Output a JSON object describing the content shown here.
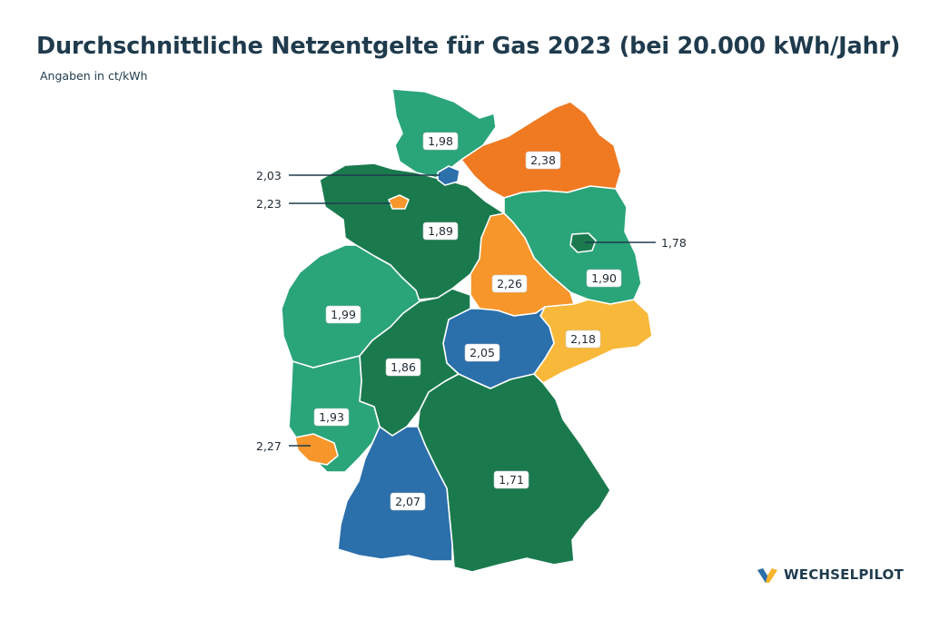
{
  "title": "Durchschnittliche Netzentgelte für Gas 2023 (bei 20.000 kWh/Jahr)",
  "subtitle": "Angaben in ct/kWh",
  "brand": "WECHSELPILOT",
  "colors": {
    "light_green": "#2aa479",
    "dark_green": "#1a7a4e",
    "blue": "#2b6fab",
    "orange": "#f07a22",
    "light_orange": "#f7962a",
    "yellow_orange": "#f8b83a"
  },
  "states": {
    "schleswig_holstein": {
      "value": "1,98",
      "color": "#2aa479"
    },
    "mecklenburg_vorpommern": {
      "value": "2,38",
      "color": "#f07a22"
    },
    "hamburg": {
      "value": "2,03",
      "color": "#2b6fab"
    },
    "bremen": {
      "value": "2,23",
      "color": "#f7962a"
    },
    "niedersachsen": {
      "value": "1,89",
      "color": "#1a7a4e"
    },
    "brandenburg": {
      "value": "1,90",
      "color": "#2aa479"
    },
    "berlin": {
      "value": "1,78",
      "color": "#1a7a4e"
    },
    "sachsen_anhalt": {
      "value": "2,26",
      "color": "#f7962a"
    },
    "nordrhein_westfalen": {
      "value": "1,99",
      "color": "#2aa479"
    },
    "sachsen": {
      "value": "2,18",
      "color": "#f8b83a"
    },
    "thueringen": {
      "value": "2,05",
      "color": "#2b6fab"
    },
    "hessen": {
      "value": "1,86",
      "color": "#1a7a4e"
    },
    "rheinland_pfalz": {
      "value": "1,93",
      "color": "#2aa479"
    },
    "saarland": {
      "value": "2,27",
      "color": "#f7962a"
    },
    "bayern": {
      "value": "1,71",
      "color": "#1a7a4e"
    },
    "baden_wuerttemberg": {
      "value": "2,07",
      "color": "#2b6fab"
    }
  }
}
